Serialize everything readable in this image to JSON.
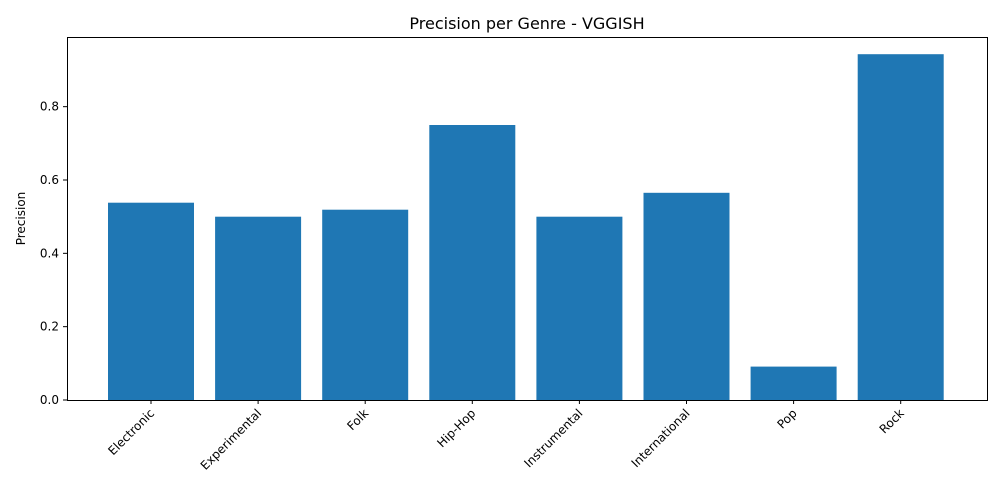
{
  "chart_data": {
    "type": "bar",
    "title": "Precision per Genre - VGGISH",
    "xlabel": "",
    "ylabel": "Precision",
    "categories": [
      "Electronic",
      "Experimental",
      "Folk",
      "Hip-Hop",
      "Instrumental",
      "International",
      "Pop",
      "Rock"
    ],
    "values": [
      0.538,
      0.5,
      0.519,
      0.75,
      0.5,
      0.565,
      0.091,
      0.943
    ],
    "ylim": [
      0,
      0.99
    ],
    "yticks": [
      0.0,
      0.2,
      0.4,
      0.6,
      0.8
    ],
    "ytick_labels": [
      "0.0",
      "0.2",
      "0.4",
      "0.6",
      "0.8"
    ],
    "bar_color": "#1f77b4",
    "grid": false,
    "legend": "none"
  }
}
